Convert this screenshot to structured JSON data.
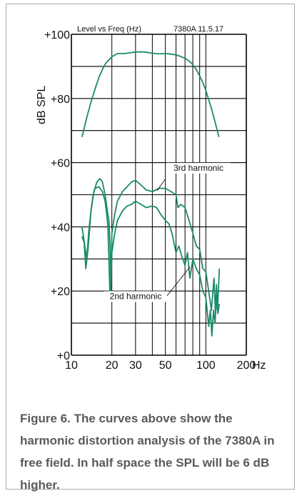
{
  "chart_data": {
    "type": "line",
    "title": "Level vs Freq (Hz)",
    "model_label": "7380A 11.5.17",
    "ylabel": "dB SPL",
    "x_unit": "Hz",
    "x_scale": "log",
    "xlim": [
      10,
      200
    ],
    "ylim": [
      0,
      100
    ],
    "y_ticks": [
      0,
      20,
      40,
      60,
      80,
      100
    ],
    "y_tick_labels": [
      "+0",
      "+20",
      "+40",
      "+60",
      "+80",
      "+100"
    ],
    "x_ticks": [
      10,
      20,
      30,
      50,
      100,
      200
    ],
    "x_tick_labels": [
      "10",
      "20",
      "30",
      "50",
      "100",
      "200"
    ],
    "grid": true,
    "line_color": "#1a8a6a",
    "series": [
      {
        "x": [
          12,
          13,
          14,
          15,
          16,
          17,
          18,
          20,
          22,
          25,
          28,
          30,
          35,
          40,
          45,
          50,
          55,
          60,
          65,
          70,
          75,
          80,
          85,
          90,
          95,
          100,
          110,
          120,
          125
        ],
        "y": [
          68,
          74,
          79,
          83,
          86.5,
          89,
          91,
          93,
          94,
          94,
          94.3,
          94.5,
          94.5,
          94.1,
          93.9,
          94,
          93.8,
          93.6,
          93.1,
          92.5,
          91.7,
          90.6,
          89,
          87,
          85,
          82.5,
          77,
          71,
          68
        ]
      },
      {
        "name": "3rd harmonic",
        "x": [
          12,
          12.4,
          12.8,
          13.3,
          14,
          14.7,
          15.5,
          16.3,
          17,
          17.8,
          18.5,
          19,
          19.4,
          19.7,
          20,
          21,
          22,
          24,
          26,
          28,
          30,
          33,
          36,
          40,
          45,
          50,
          55,
          60,
          62,
          65,
          70,
          75,
          80,
          85,
          90,
          95,
          100,
          105,
          110,
          115,
          118,
          120,
          122,
          124,
          126
        ],
        "y": [
          40,
          36,
          27,
          33,
          45,
          51,
          54,
          55,
          54,
          50,
          45,
          42,
          34,
          20,
          38,
          44,
          48,
          51,
          52.5,
          54,
          54.5,
          53,
          51.5,
          51,
          52,
          52,
          51,
          50,
          46,
          47,
          46,
          42,
          38,
          34,
          33,
          27,
          26,
          20,
          14,
          24,
          13,
          22,
          14,
          20,
          27
        ]
      },
      {
        "name": "2nd harmonic",
        "x": [
          12,
          12.5,
          13,
          13.5,
          14,
          14.5,
          15,
          16,
          17,
          17.8,
          18.3,
          18.7,
          19,
          19.3,
          19.6,
          20,
          21,
          22,
          24,
          26,
          28,
          30,
          33,
          36,
          40,
          43,
          46,
          50,
          53,
          56,
          60,
          63,
          66,
          70,
          73,
          76,
          80,
          85,
          90,
          95,
          100,
          105,
          108,
          111,
          114,
          117,
          120,
          123,
          126
        ],
        "y": [
          37,
          35,
          30,
          39,
          45,
          50,
          52,
          52.5,
          51,
          48,
          44,
          40,
          30,
          20,
          19,
          32,
          38,
          42,
          45,
          46.5,
          47,
          48,
          47,
          46,
          46.5,
          46,
          44,
          42,
          41,
          38,
          32,
          34,
          31,
          28,
          32,
          24,
          30,
          27,
          25,
          20,
          18,
          9,
          14,
          6,
          14,
          10,
          18,
          13,
          16
        ]
      }
    ],
    "annotations": [
      {
        "text": "3rd harmonic"
      },
      {
        "text": "2nd harmonic"
      }
    ]
  },
  "caption": "Figure 6. The curves above show the harmonic distortion analysis of the 7380A in free field. In half space the SPL will be 6 dB higher."
}
